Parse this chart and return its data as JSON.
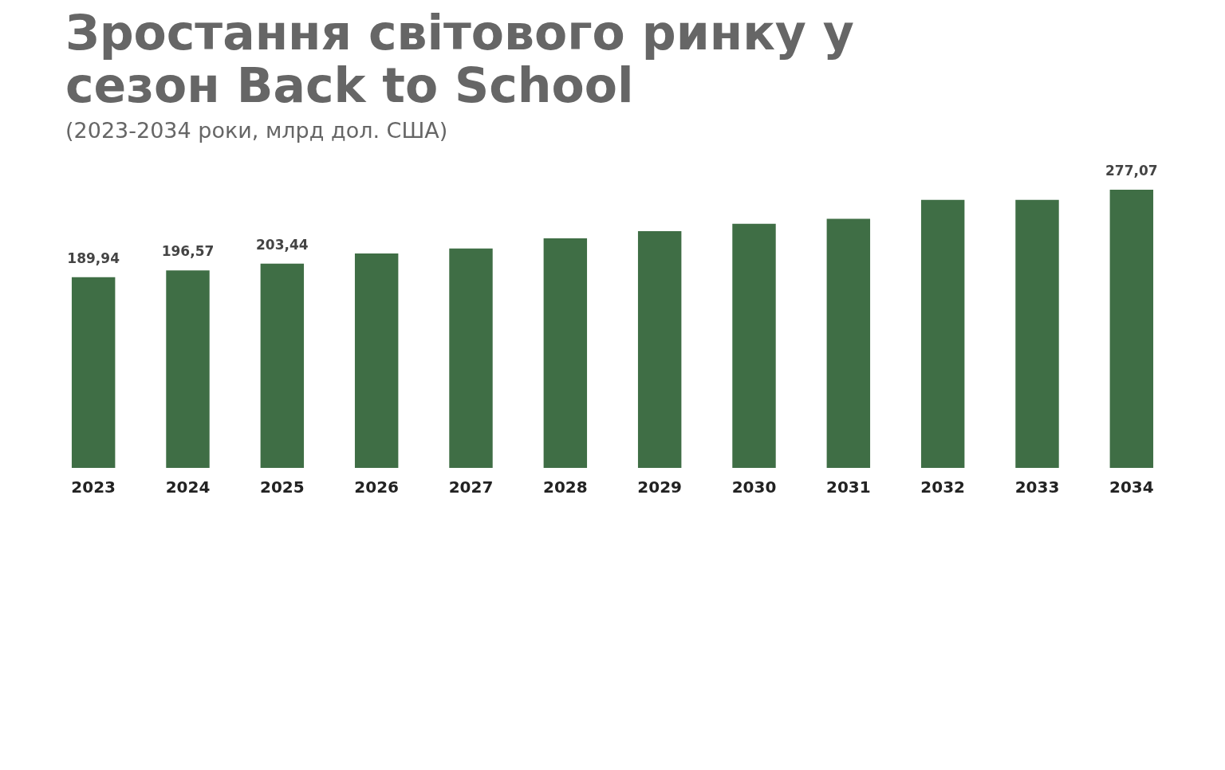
{
  "chart_data": {
    "type": "bar",
    "title": "Зростання світового ринку у сезон Back to School",
    "subtitle": "(2023-2034 роки, млрд дол. США)",
    "categories": [
      "2023",
      "2024",
      "2025",
      "2026",
      "2027",
      "2028",
      "2029",
      "2030",
      "2031",
      "2032",
      "2033",
      "2034"
    ],
    "values": [
      189.94,
      196.57,
      203.44,
      213.5,
      218.5,
      228.6,
      235.8,
      243.0,
      248.1,
      266.9,
      266.9,
      277.07
    ],
    "value_labels": [
      "189,94",
      "196,57",
      "203,44",
      null,
      null,
      null,
      null,
      null,
      null,
      null,
      null,
      "277,07"
    ],
    "color": "#3f6e45",
    "grid": false,
    "legend": false
  }
}
